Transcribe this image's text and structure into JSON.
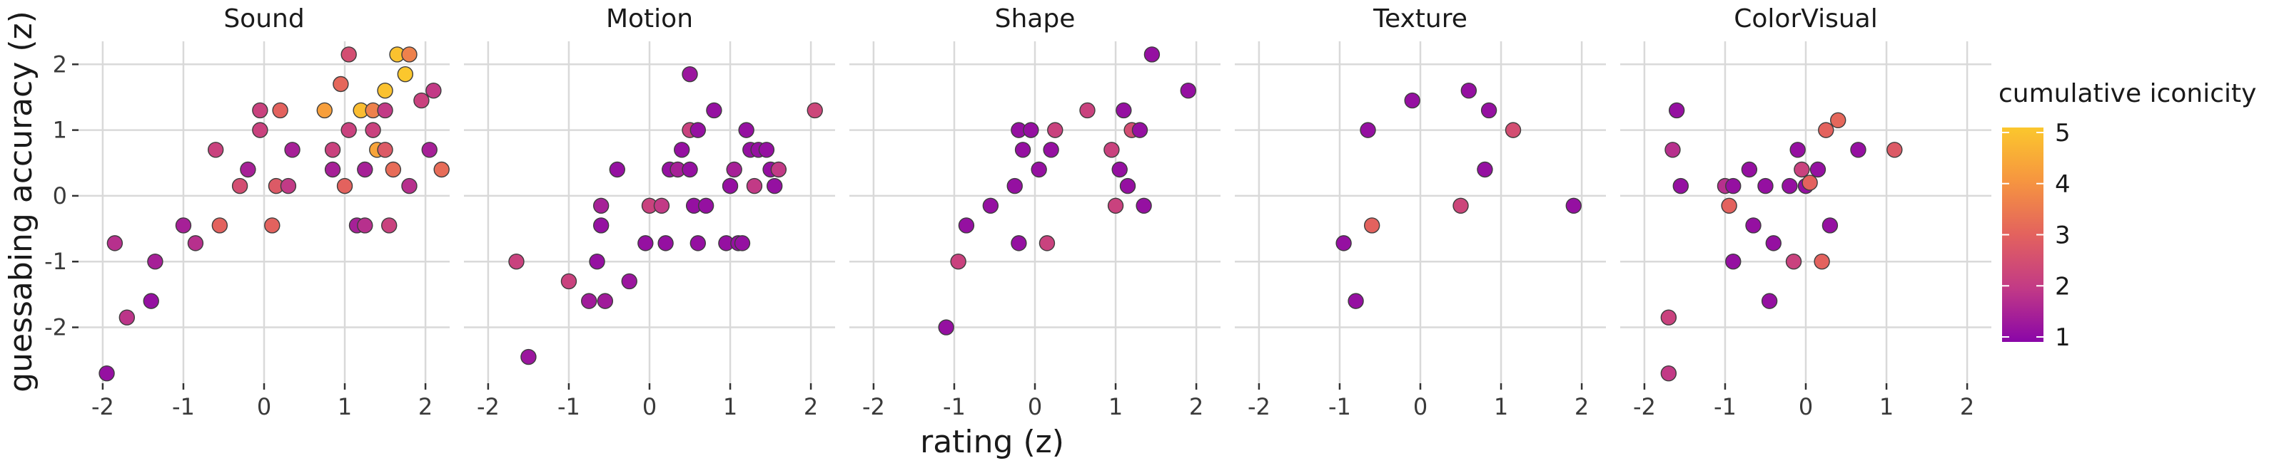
{
  "chart_data": {
    "type": "scatter",
    "xlabel": "rating (z)",
    "ylabel": "guessabing accuracy (z)",
    "xlim": [
      -2.3,
      2.3
    ],
    "ylim": [
      -2.85,
      2.35
    ],
    "x_ticks": [
      -2,
      -1,
      0,
      1,
      2
    ],
    "x_tick_labels": [
      "-2",
      "-1",
      "0",
      "1",
      "2"
    ],
    "y_ticks": [
      -2,
      -1,
      0,
      1,
      2
    ],
    "y_tick_labels": [
      "-2",
      "-1",
      "0",
      "1",
      "2"
    ],
    "grid": true,
    "legend": {
      "title": "cumulative iconicity",
      "placement": "right",
      "min": 1,
      "max": 5,
      "ticks": [
        1,
        2,
        3,
        4,
        5
      ],
      "tick_labels": [
        "1",
        "2",
        "3",
        "4",
        "5"
      ],
      "colors": [
        "#8a06a8",
        "#c23a86",
        "#e3625e",
        "#f69540",
        "#fbc72d"
      ]
    },
    "panels": [
      {
        "title": "Sound",
        "points": [
          {
            "x": -1.95,
            "y": -2.7,
            "c": 1.2
          },
          {
            "x": -1.85,
            "y": -0.72,
            "c": 1.8
          },
          {
            "x": -1.7,
            "y": -1.85,
            "c": 1.9
          },
          {
            "x": -1.35,
            "y": -1.0,
            "c": 1.5
          },
          {
            "x": -1.4,
            "y": -1.6,
            "c": 1.2
          },
          {
            "x": -1.0,
            "y": -0.45,
            "c": 1.5
          },
          {
            "x": -0.85,
            "y": -0.72,
            "c": 1.8
          },
          {
            "x": -0.6,
            "y": 0.7,
            "c": 2.2
          },
          {
            "x": -0.55,
            "y": -0.45,
            "c": 3.0
          },
          {
            "x": -0.3,
            "y": 0.15,
            "c": 2.5
          },
          {
            "x": -0.2,
            "y": 0.4,
            "c": 1.5
          },
          {
            "x": -0.05,
            "y": 1.3,
            "c": 2.2
          },
          {
            "x": -0.05,
            "y": 1.0,
            "c": 2.2
          },
          {
            "x": 0.15,
            "y": 0.15,
            "c": 2.8
          },
          {
            "x": 0.2,
            "y": 1.3,
            "c": 3.0
          },
          {
            "x": 0.1,
            "y": -0.45,
            "c": 3.0
          },
          {
            "x": 0.35,
            "y": 0.7,
            "c": 1.5
          },
          {
            "x": 0.3,
            "y": 0.15,
            "c": 2.0
          },
          {
            "x": 0.75,
            "y": 1.3,
            "c": 4.2
          },
          {
            "x": 0.85,
            "y": 0.4,
            "c": 1.5
          },
          {
            "x": 0.85,
            "y": 0.7,
            "c": 2.2
          },
          {
            "x": 0.95,
            "y": 1.7,
            "c": 3.1
          },
          {
            "x": 1.0,
            "y": 0.15,
            "c": 3.0
          },
          {
            "x": 1.05,
            "y": 2.15,
            "c": 2.5
          },
          {
            "x": 1.05,
            "y": 1.0,
            "c": 2.2
          },
          {
            "x": 1.15,
            "y": -0.45,
            "c": 1.5
          },
          {
            "x": 1.2,
            "y": 1.3,
            "c": 4.8
          },
          {
            "x": 1.25,
            "y": 0.4,
            "c": 1.5
          },
          {
            "x": 1.25,
            "y": -0.45,
            "c": 1.8
          },
          {
            "x": 1.35,
            "y": 1.3,
            "c": 3.6
          },
          {
            "x": 1.35,
            "y": 1.0,
            "c": 2.2
          },
          {
            "x": 1.4,
            "y": 0.7,
            "c": 4.3
          },
          {
            "x": 1.5,
            "y": 1.6,
            "c": 4.9
          },
          {
            "x": 1.5,
            "y": 1.3,
            "c": 2.0
          },
          {
            "x": 1.5,
            "y": 0.7,
            "c": 2.8
          },
          {
            "x": 1.55,
            "y": -0.45,
            "c": 2.2
          },
          {
            "x": 1.6,
            "y": 0.4,
            "c": 3.2
          },
          {
            "x": 1.65,
            "y": 2.15,
            "c": 4.9
          },
          {
            "x": 1.75,
            "y": 1.85,
            "c": 5.0
          },
          {
            "x": 1.8,
            "y": 2.15,
            "c": 3.6
          },
          {
            "x": 1.8,
            "y": 0.15,
            "c": 1.8
          },
          {
            "x": 1.95,
            "y": 1.45,
            "c": 2.2
          },
          {
            "x": 2.05,
            "y": 0.7,
            "c": 1.5
          },
          {
            "x": 2.1,
            "y": 1.6,
            "c": 2.0
          },
          {
            "x": 2.2,
            "y": 0.4,
            "c": 3.2
          }
        ]
      },
      {
        "title": "Motion",
        "points": [
          {
            "x": -1.65,
            "y": -1.0,
            "c": 2.2
          },
          {
            "x": -1.5,
            "y": -2.45,
            "c": 1.3
          },
          {
            "x": -1.0,
            "y": -1.3,
            "c": 2.2
          },
          {
            "x": -0.75,
            "y": -1.6,
            "c": 1.4
          },
          {
            "x": -0.65,
            "y": -1.0,
            "c": 1.2
          },
          {
            "x": -0.6,
            "y": -0.45,
            "c": 1.2
          },
          {
            "x": -0.6,
            "y": -0.15,
            "c": 1.5
          },
          {
            "x": -0.55,
            "y": -1.6,
            "c": 1.4
          },
          {
            "x": -0.4,
            "y": 0.4,
            "c": 1.2
          },
          {
            "x": -0.25,
            "y": -1.3,
            "c": 1.3
          },
          {
            "x": -0.05,
            "y": -0.72,
            "c": 1.2
          },
          {
            "x": 0.0,
            "y": -0.15,
            "c": 2.2
          },
          {
            "x": 0.15,
            "y": -0.15,
            "c": 2.0
          },
          {
            "x": 0.2,
            "y": -0.72,
            "c": 1.2
          },
          {
            "x": 0.25,
            "y": 0.4,
            "c": 1.2
          },
          {
            "x": 0.35,
            "y": 0.4,
            "c": 1.5
          },
          {
            "x": 0.4,
            "y": 0.7,
            "c": 1.2
          },
          {
            "x": 0.5,
            "y": 1.0,
            "c": 2.2
          },
          {
            "x": 0.5,
            "y": 1.85,
            "c": 1.3
          },
          {
            "x": 0.5,
            "y": 0.4,
            "c": 1.2
          },
          {
            "x": 0.55,
            "y": -0.15,
            "c": 1.2
          },
          {
            "x": 0.6,
            "y": 1.0,
            "c": 1.2
          },
          {
            "x": 0.6,
            "y": -0.72,
            "c": 1.2
          },
          {
            "x": 0.7,
            "y": -0.15,
            "c": 1.2
          },
          {
            "x": 0.8,
            "y": 1.3,
            "c": 1.2
          },
          {
            "x": 0.95,
            "y": -0.72,
            "c": 1.2
          },
          {
            "x": 1.0,
            "y": 0.15,
            "c": 1.2
          },
          {
            "x": 1.05,
            "y": 0.4,
            "c": 1.5
          },
          {
            "x": 1.1,
            "y": -0.72,
            "c": 1.2
          },
          {
            "x": 1.15,
            "y": -0.72,
            "c": 1.2
          },
          {
            "x": 1.2,
            "y": 1.0,
            "c": 1.2
          },
          {
            "x": 1.25,
            "y": 0.7,
            "c": 1.2
          },
          {
            "x": 1.3,
            "y": 0.15,
            "c": 2.0
          },
          {
            "x": 1.35,
            "y": 0.7,
            "c": 1.2
          },
          {
            "x": 1.45,
            "y": 0.7,
            "c": 1.2
          },
          {
            "x": 1.5,
            "y": 0.4,
            "c": 1.2
          },
          {
            "x": 1.55,
            "y": 0.15,
            "c": 1.2
          },
          {
            "x": 1.6,
            "y": 0.4,
            "c": 2.0
          },
          {
            "x": 2.05,
            "y": 1.3,
            "c": 2.3
          }
        ]
      },
      {
        "title": "Shape",
        "points": [
          {
            "x": -1.1,
            "y": -2.0,
            "c": 1.2
          },
          {
            "x": -0.95,
            "y": -1.0,
            "c": 2.2
          },
          {
            "x": -0.85,
            "y": -0.45,
            "c": 1.2
          },
          {
            "x": -0.55,
            "y": -0.15,
            "c": 1.2
          },
          {
            "x": -0.25,
            "y": 0.15,
            "c": 1.2
          },
          {
            "x": -0.2,
            "y": -0.72,
            "c": 1.2
          },
          {
            "x": -0.2,
            "y": 1.0,
            "c": 1.2
          },
          {
            "x": -0.15,
            "y": 0.7,
            "c": 1.2
          },
          {
            "x": -0.05,
            "y": 1.0,
            "c": 1.2
          },
          {
            "x": 0.05,
            "y": 0.4,
            "c": 1.2
          },
          {
            "x": 0.15,
            "y": -0.72,
            "c": 2.2
          },
          {
            "x": 0.2,
            "y": 0.7,
            "c": 1.2
          },
          {
            "x": 0.25,
            "y": 1.0,
            "c": 2.2
          },
          {
            "x": 0.65,
            "y": 1.3,
            "c": 2.2
          },
          {
            "x": 0.95,
            "y": 0.7,
            "c": 2.2
          },
          {
            "x": 1.0,
            "y": -0.15,
            "c": 2.2
          },
          {
            "x": 1.05,
            "y": 0.4,
            "c": 1.2
          },
          {
            "x": 1.1,
            "y": 1.3,
            "c": 1.2
          },
          {
            "x": 1.15,
            "y": 0.15,
            "c": 1.2
          },
          {
            "x": 1.2,
            "y": 1.0,
            "c": 2.5
          },
          {
            "x": 1.3,
            "y": 1.0,
            "c": 1.2
          },
          {
            "x": 1.35,
            "y": -0.15,
            "c": 1.2
          },
          {
            "x": 1.45,
            "y": 2.15,
            "c": 1.2
          },
          {
            "x": 1.9,
            "y": 1.6,
            "c": 1.2
          }
        ]
      },
      {
        "title": "Texture",
        "points": [
          {
            "x": -0.95,
            "y": -0.72,
            "c": 1.2
          },
          {
            "x": -0.8,
            "y": -1.6,
            "c": 1.2
          },
          {
            "x": -0.65,
            "y": 1.0,
            "c": 1.2
          },
          {
            "x": -0.6,
            "y": -0.45,
            "c": 3.0
          },
          {
            "x": -0.1,
            "y": 1.45,
            "c": 1.2
          },
          {
            "x": 0.5,
            "y": -0.15,
            "c": 2.3
          },
          {
            "x": 0.6,
            "y": 1.6,
            "c": 1.2
          },
          {
            "x": 0.8,
            "y": 0.4,
            "c": 1.2
          },
          {
            "x": 0.85,
            "y": 1.3,
            "c": 1.2
          },
          {
            "x": 1.15,
            "y": 1.0,
            "c": 2.5
          },
          {
            "x": 1.9,
            "y": -0.15,
            "c": 1.2
          }
        ]
      },
      {
        "title": "ColorVisual",
        "points": [
          {
            "x": -1.7,
            "y": -2.7,
            "c": 2.0
          },
          {
            "x": -1.7,
            "y": -1.85,
            "c": 2.2
          },
          {
            "x": -1.65,
            "y": 0.7,
            "c": 1.8
          },
          {
            "x": -1.6,
            "y": 1.3,
            "c": 1.2
          },
          {
            "x": -1.55,
            "y": 0.15,
            "c": 1.2
          },
          {
            "x": -1.0,
            "y": 0.15,
            "c": 1.8
          },
          {
            "x": -0.9,
            "y": 0.15,
            "c": 1.2
          },
          {
            "x": -0.9,
            "y": -1.0,
            "c": 1.2
          },
          {
            "x": -0.95,
            "y": -0.15,
            "c": 3.0
          },
          {
            "x": -0.7,
            "y": 0.4,
            "c": 1.2
          },
          {
            "x": -0.65,
            "y": -0.45,
            "c": 1.2
          },
          {
            "x": -0.5,
            "y": 0.15,
            "c": 1.2
          },
          {
            "x": -0.45,
            "y": -1.6,
            "c": 1.2
          },
          {
            "x": -0.4,
            "y": -0.72,
            "c": 1.2
          },
          {
            "x": -0.2,
            "y": 0.15,
            "c": 1.2
          },
          {
            "x": -0.15,
            "y": -1.0,
            "c": 2.2
          },
          {
            "x": -0.1,
            "y": 0.7,
            "c": 1.2
          },
          {
            "x": -0.05,
            "y": 0.4,
            "c": 2.2
          },
          {
            "x": 0.0,
            "y": 0.15,
            "c": 1.2
          },
          {
            "x": 0.05,
            "y": 0.2,
            "c": 3.0
          },
          {
            "x": 0.15,
            "y": 0.4,
            "c": 1.2
          },
          {
            "x": 0.2,
            "y": -1.0,
            "c": 3.0
          },
          {
            "x": 0.25,
            "y": 1.0,
            "c": 3.0
          },
          {
            "x": 0.3,
            "y": -0.45,
            "c": 1.2
          },
          {
            "x": 0.4,
            "y": 1.15,
            "c": 3.1
          },
          {
            "x": 0.65,
            "y": 0.7,
            "c": 1.2
          },
          {
            "x": 1.1,
            "y": 0.7,
            "c": 2.8
          }
        ]
      }
    ]
  }
}
